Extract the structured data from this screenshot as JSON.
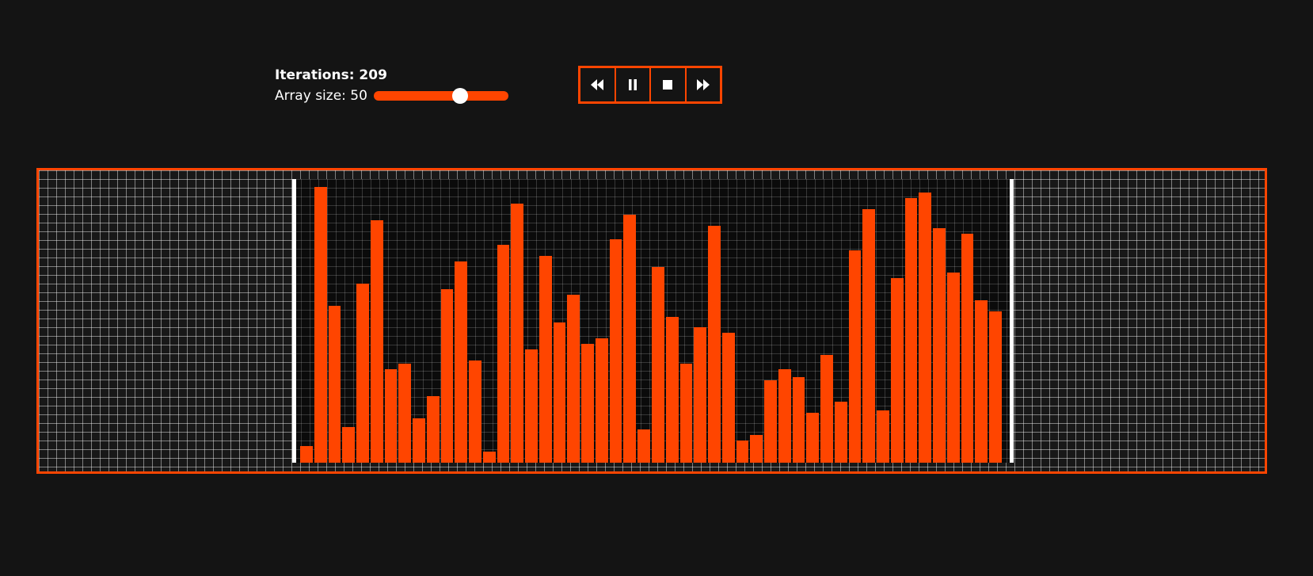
{
  "header": {
    "iterations_label": "Iterations: 209",
    "array_size_label": "Array size: 50"
  },
  "slider": {
    "value": 50,
    "fill_fraction": 0.64,
    "color": "#ff4500"
  },
  "playback": {
    "buttons": [
      {
        "name": "rewind-button",
        "icon": "rewind-icon"
      },
      {
        "name": "pause-button",
        "icon": "pause-icon"
      },
      {
        "name": "stop-button",
        "icon": "stop-icon"
      },
      {
        "name": "fast-forward-button",
        "icon": "fast-forward-icon"
      }
    ]
  },
  "colors": {
    "accent": "#ff4500",
    "background": "#141414",
    "boundary": "#ffffff"
  },
  "chart_data": {
    "type": "bar",
    "bar_color": "#ff4500",
    "ymax": 100,
    "values": [
      6,
      100,
      57,
      13,
      65,
      88,
      34,
      36,
      16,
      24,
      63,
      73,
      37,
      4,
      79,
      94,
      41,
      75,
      51,
      61,
      43,
      45,
      81,
      90,
      12,
      71,
      53,
      36,
      49,
      86,
      47,
      8,
      10,
      30,
      34,
      31,
      18,
      39,
      22,
      77,
      92,
      19,
      67,
      96,
      98,
      85,
      69,
      83,
      59,
      55
    ]
  }
}
